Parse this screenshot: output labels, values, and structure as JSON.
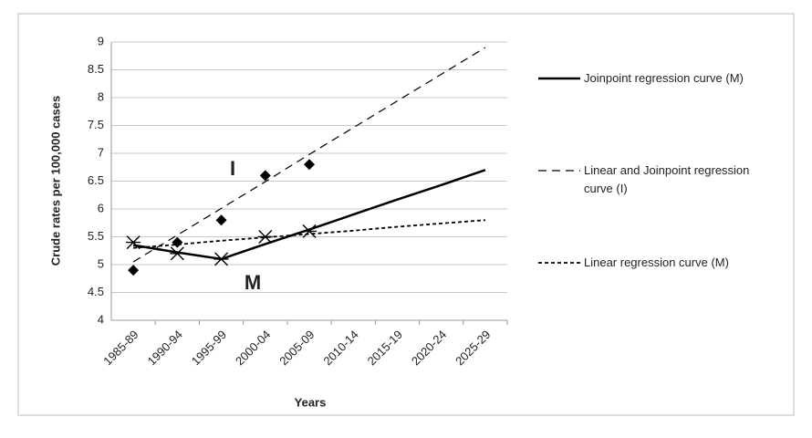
{
  "chart_data": {
    "type": "line",
    "y_axis_title": "Crude rates per 100,000 cases",
    "x_axis_title": "Years",
    "categories": [
      "1985-89",
      "1990-94",
      "1995-99",
      "2000-04",
      "2005-09",
      "2010-14",
      "2015-19",
      "2020-24",
      "2025-29"
    ],
    "ylim": [
      4,
      9
    ],
    "yticks": [
      4,
      4.5,
      5,
      5.5,
      6,
      6.5,
      7,
      7.5,
      8,
      8.5,
      9
    ],
    "grid": true,
    "legend": "right",
    "annotations": [
      "I",
      "M"
    ],
    "series": [
      {
        "marker": "diamond",
        "color": "#000000",
        "values": [
          4.9,
          5.4,
          5.8,
          6.6,
          6.8,
          null,
          null,
          null,
          null
        ]
      },
      {
        "marker": "x",
        "color": "#000000",
        "values": [
          5.4,
          5.2,
          5.1,
          5.5,
          5.6,
          null,
          null,
          null,
          null
        ]
      },
      {
        "name": "Joinpoint regression curve (M)",
        "color": "#000000",
        "dash": "solid",
        "values": [
          5.35,
          5.22,
          5.1,
          5.37,
          5.63,
          5.9,
          6.17,
          6.43,
          6.7
        ]
      },
      {
        "name": "Linear and Joinpoint regression curve (I)",
        "color": "#000000",
        "dash": "long",
        "values": [
          5.05,
          5.53,
          6.01,
          6.49,
          6.98,
          7.46,
          7.94,
          8.42,
          8.9
        ]
      },
      {
        "name": "Linear regression curve (M)",
        "color": "#000000",
        "dash": "short",
        "values": [
          5.3,
          5.36,
          5.43,
          5.49,
          5.55,
          5.61,
          5.68,
          5.74,
          5.8
        ]
      }
    ]
  }
}
